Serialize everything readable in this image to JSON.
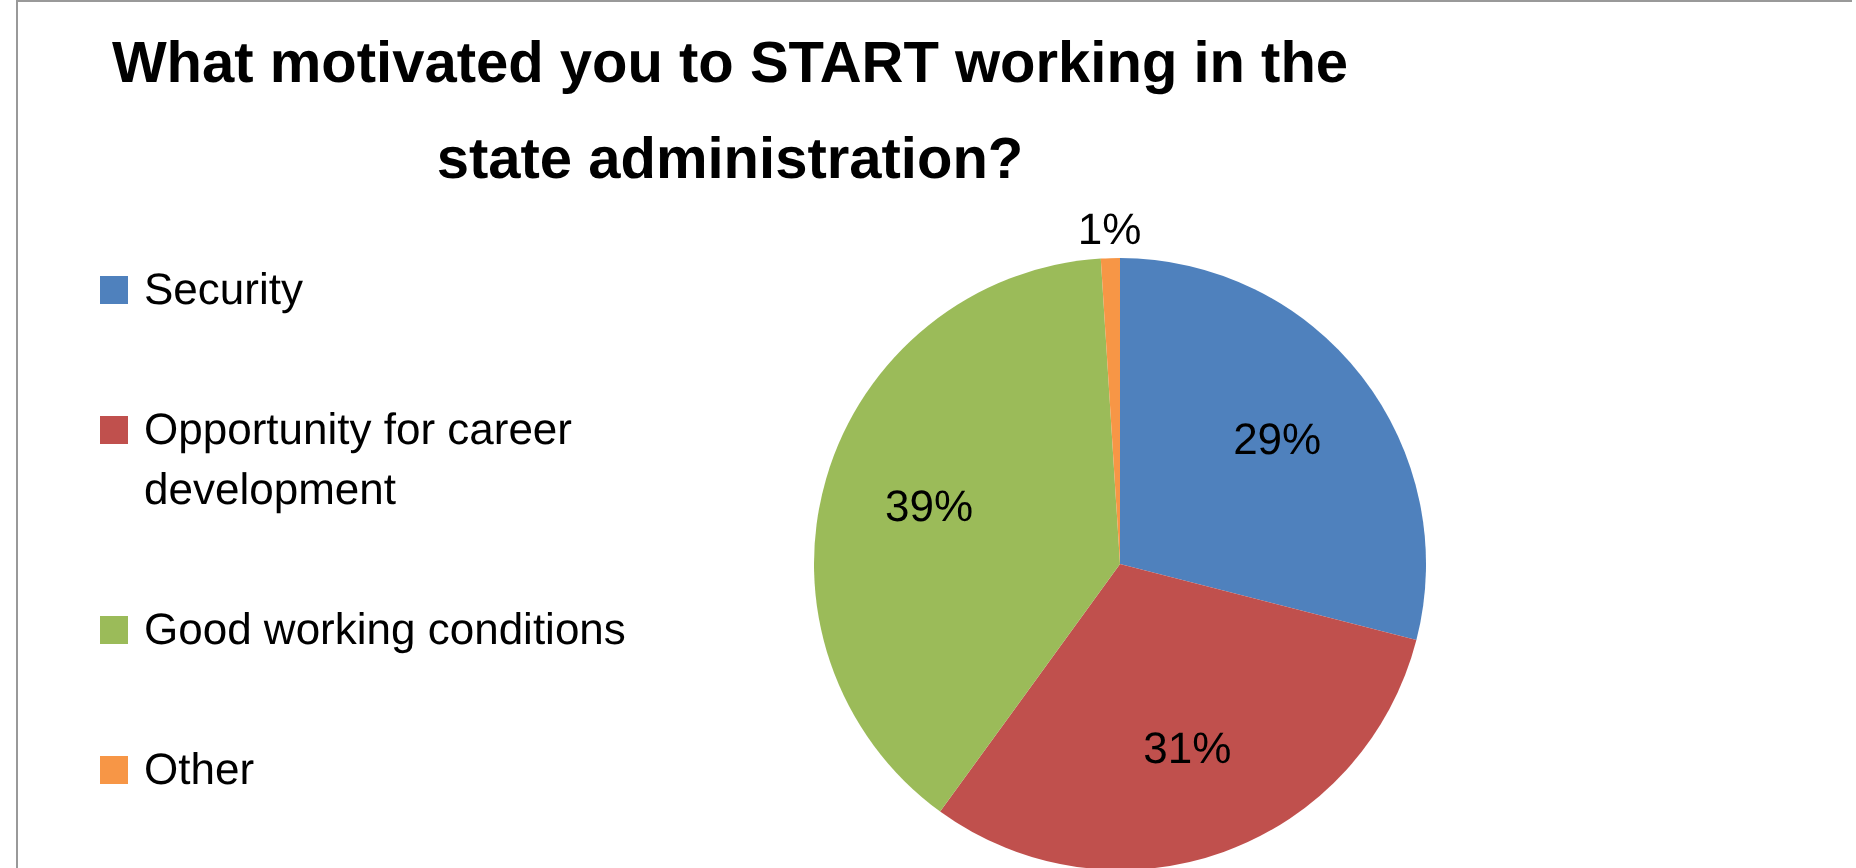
{
  "chart_data": {
    "type": "pie",
    "title": "What motivated you to START working in the state administration?",
    "categories": [
      "Security",
      "Opportunity for career development",
      "Good working conditions",
      "Other"
    ],
    "values": [
      29,
      31,
      39,
      1
    ],
    "colors": [
      "#4f81bd",
      "#c0504d",
      "#9bbb59",
      "#f79646"
    ],
    "value_labels": [
      "29%",
      "31%",
      "39%",
      "1%"
    ],
    "legend": "left"
  }
}
